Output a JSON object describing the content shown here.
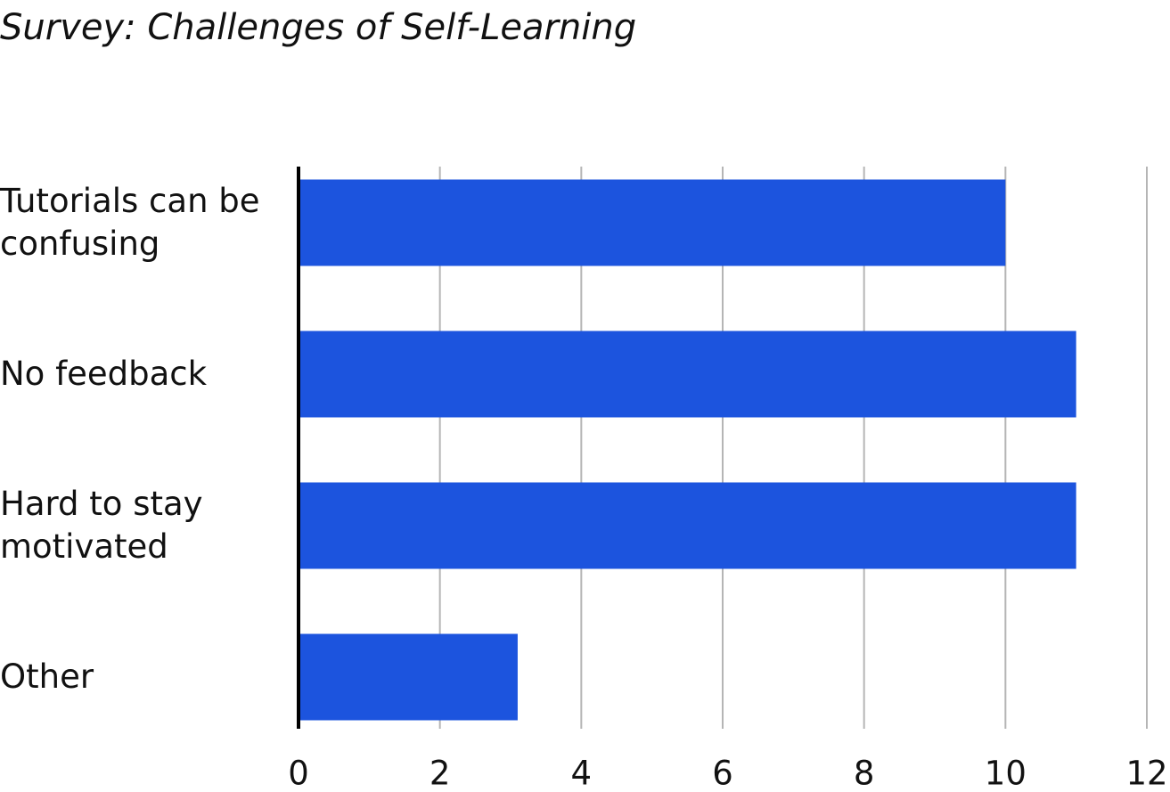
{
  "chart_data": {
    "type": "bar",
    "orientation": "horizontal",
    "title": "Survey: Challenges of Self-Learning",
    "categories": [
      "Tutorials can be confusing",
      "No feedback",
      "Hard to stay motivated",
      "Other"
    ],
    "values": [
      10,
      11,
      11,
      3.1
    ],
    "color": "#1c54de",
    "xlim": [
      0,
      12
    ],
    "xticks": [
      0,
      2,
      4,
      6,
      8,
      10,
      12
    ],
    "grid": true
  }
}
